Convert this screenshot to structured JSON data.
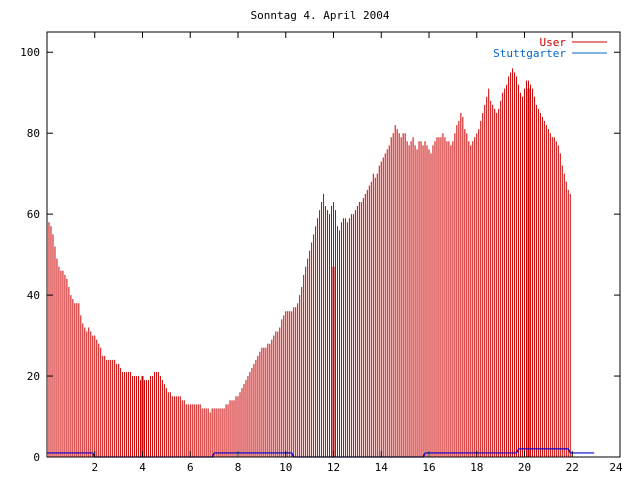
{
  "chart_data": {
    "type": "bar",
    "title": "Sonntag 4. April 2004",
    "xlabel": "",
    "ylabel": "",
    "xlim": [
      0,
      24
    ],
    "ylim": [
      0,
      105
    ],
    "x_ticks": [
      2,
      4,
      6,
      8,
      10,
      12,
      14,
      16,
      18,
      20,
      22,
      24
    ],
    "y_ticks": [
      0,
      20,
      40,
      60,
      80,
      100
    ],
    "grid": false,
    "legend_position": "top-right",
    "step_minutes": 5,
    "series": [
      {
        "name": "User",
        "color": "#cc0000",
        "values": [
          61,
          58,
          57,
          55,
          52,
          49,
          47,
          46,
          46,
          45,
          44,
          42,
          40,
          39,
          38,
          38,
          38,
          35,
          33,
          32,
          31,
          32,
          31,
          30,
          30,
          29,
          28,
          27,
          25,
          25,
          24,
          24,
          24,
          24,
          24,
          23,
          23,
          22,
          21,
          21,
          21,
          21,
          21,
          20,
          20,
          20,
          20,
          19,
          19,
          19,
          19,
          19,
          20,
          20,
          21,
          21,
          21,
          20,
          19,
          18,
          17,
          16,
          16,
          15,
          15,
          15,
          15,
          15,
          14,
          14,
          13,
          13,
          13,
          13,
          13,
          13,
          13,
          13,
          12,
          12,
          12,
          12,
          11,
          12,
          12,
          12,
          12,
          12,
          12,
          12,
          13,
          13,
          14,
          14,
          14,
          15,
          15,
          16,
          17,
          18,
          19,
          20,
          21,
          22,
          23,
          24,
          25,
          26,
          27,
          27,
          27,
          28,
          28,
          29,
          30,
          31,
          31,
          32,
          34,
          35,
          36,
          36,
          36,
          36,
          37,
          37,
          38,
          40,
          42,
          45,
          47,
          49,
          51,
          53,
          55,
          57,
          59,
          61,
          63,
          65,
          62,
          61,
          60,
          62,
          63,
          61,
          57,
          56,
          58,
          59,
          59,
          58,
          59,
          60,
          60,
          61,
          62,
          63,
          63,
          64,
          65,
          66,
          67,
          68,
          70,
          69,
          70,
          72,
          73,
          74,
          75,
          76,
          77,
          79,
          80,
          82,
          81,
          80,
          79,
          80,
          80,
          78,
          77,
          78,
          79,
          77,
          76,
          78,
          78,
          77,
          78,
          77,
          76,
          75,
          77,
          78,
          79,
          79,
          79,
          80,
          79,
          78,
          78,
          77,
          78,
          80,
          82,
          83,
          85,
          84,
          81,
          80,
          78,
          77,
          78,
          79,
          80,
          81,
          83,
          85,
          87,
          89,
          91,
          88,
          87,
          86,
          85,
          86,
          88,
          90,
          91,
          92,
          94,
          95,
          96,
          95,
          94,
          92,
          90,
          89,
          91,
          93,
          93,
          92,
          91,
          89,
          87,
          86,
          85,
          84,
          83,
          82,
          81,
          80,
          79,
          79,
          78,
          77,
          75,
          72,
          70,
          68,
          66,
          65
        ],
        "spikes": [
          {
            "x": 4.0,
            "value": 20
          },
          {
            "x": 12.0,
            "value": 47
          },
          {
            "x": 20.17,
            "value": 91
          }
        ]
      },
      {
        "name": "Stuttgarter",
        "color": "#0000cc",
        "values": [
          1,
          1,
          1,
          1,
          1,
          1,
          1,
          1,
          1,
          1,
          1,
          1,
          1,
          1,
          1,
          1,
          1,
          1,
          1,
          1,
          1,
          1,
          1,
          1,
          0,
          0,
          0,
          0,
          0,
          0,
          0,
          0,
          0,
          0,
          0,
          0,
          0,
          0,
          0,
          0,
          0,
          0,
          0,
          0,
          0,
          0,
          0,
          0,
          0,
          0,
          0,
          0,
          0,
          0,
          0,
          0,
          0,
          0,
          0,
          0,
          0,
          0,
          0,
          0,
          0,
          0,
          0,
          0,
          0,
          0,
          0,
          0,
          0,
          0,
          0,
          0,
          0,
          0,
          0,
          0,
          0,
          0,
          0,
          0,
          1,
          1,
          1,
          1,
          1,
          1,
          1,
          1,
          1,
          1,
          1,
          1,
          1,
          1,
          1,
          1,
          1,
          1,
          1,
          1,
          1,
          1,
          1,
          1,
          1,
          1,
          1,
          1,
          1,
          1,
          1,
          1,
          1,
          1,
          1,
          1,
          1,
          1,
          1,
          1,
          0,
          0,
          0,
          0,
          0,
          0,
          0,
          0,
          0,
          0,
          0,
          0,
          0,
          0,
          0,
          0,
          0,
          0,
          0,
          0,
          0,
          0,
          0,
          0,
          0,
          0,
          0,
          0,
          0,
          0,
          0,
          0,
          0,
          0,
          0,
          0,
          0,
          0,
          0,
          0,
          0,
          0,
          0,
          0,
          0,
          0,
          0,
          0,
          0,
          0,
          0,
          0,
          0,
          0,
          0,
          0,
          0,
          0,
          0,
          0,
          0,
          0,
          0,
          0,
          0,
          0,
          1,
          1,
          1,
          1,
          1,
          1,
          1,
          1,
          1,
          1,
          1,
          1,
          1,
          1,
          1,
          1,
          1,
          1,
          1,
          1,
          1,
          1,
          1,
          1,
          1,
          1,
          1,
          1,
          1,
          1,
          1,
          1,
          1,
          1,
          1,
          1,
          1,
          1,
          1,
          1,
          1,
          1,
          1,
          1,
          1,
          1,
          1,
          2,
          2,
          2,
          2,
          2,
          2,
          2,
          2,
          2,
          2,
          2,
          2,
          2,
          2,
          2,
          2,
          2,
          2,
          2,
          2,
          2,
          2,
          2,
          2,
          2,
          2,
          1,
          1,
          1,
          1,
          1,
          1,
          1,
          1,
          1,
          1,
          1,
          1,
          1
        ]
      }
    ]
  }
}
